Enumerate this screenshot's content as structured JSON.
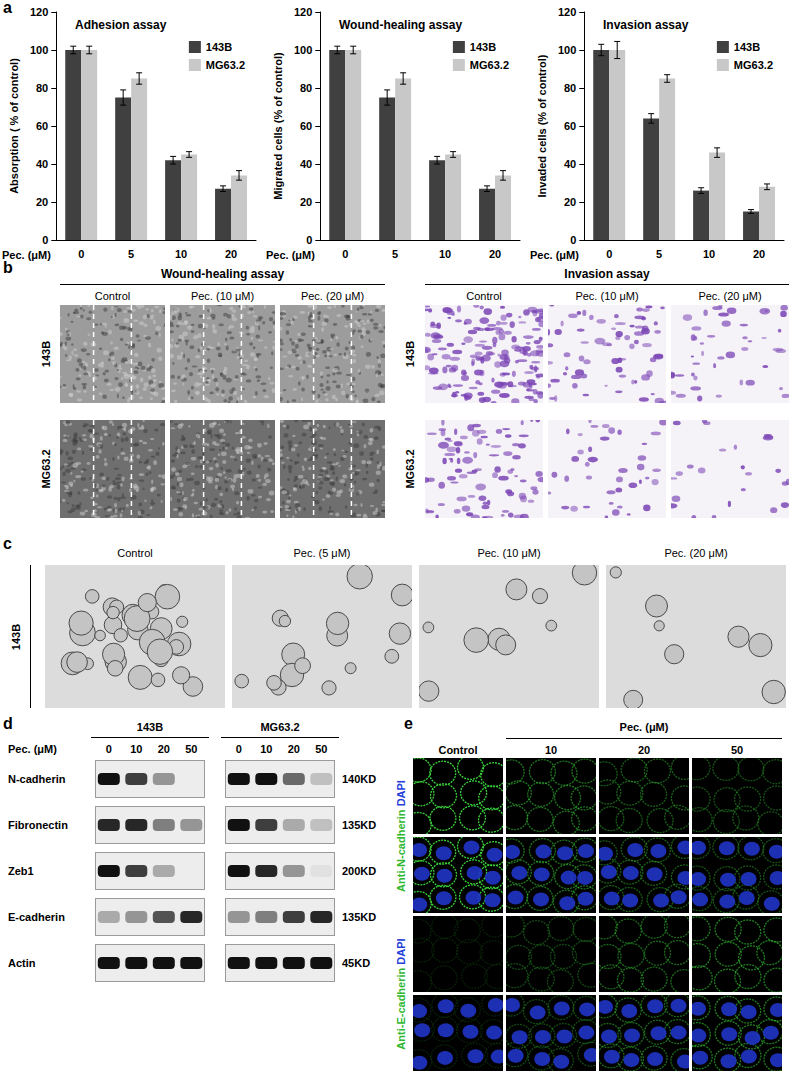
{
  "chart_data": [
    {
      "type": "bar",
      "title": "Adhesion assay",
      "categories": [
        "0",
        "5",
        "10",
        "20"
      ],
      "x_label": "Pec. (μM)",
      "y_label": "Absorption ( % of control)",
      "series": [
        {
          "name": "143B",
          "color": "#404040",
          "values": [
            100,
            75,
            42,
            27
          ],
          "errors": [
            2,
            4,
            2,
            1.5
          ]
        },
        {
          "name": "MG63.2",
          "color": "#c8c8c8",
          "values": [
            100,
            85,
            45,
            34
          ],
          "errors": [
            2,
            3,
            1.5,
            2.5
          ]
        }
      ],
      "ylim": [
        0,
        120
      ],
      "yticks": [
        0,
        20,
        40,
        60,
        80,
        100,
        120
      ],
      "grid": false,
      "legend": "top-right"
    },
    {
      "type": "bar",
      "title": "Wound-healing assay",
      "categories": [
        "0",
        "5",
        "10",
        "20"
      ],
      "x_label": "Pec. (μM)",
      "y_label": "Migrated cells (% of control)",
      "series": [
        {
          "name": "143B",
          "color": "#404040",
          "values": [
            100,
            75,
            42,
            27
          ],
          "errors": [
            2,
            4,
            2,
            1.5
          ]
        },
        {
          "name": "MG63.2",
          "color": "#c8c8c8",
          "values": [
            100,
            85,
            45,
            34
          ],
          "errors": [
            2,
            3,
            1.5,
            2.5
          ]
        }
      ],
      "ylim": [
        0,
        120
      ],
      "yticks": [
        0,
        20,
        40,
        60,
        80,
        100,
        120
      ],
      "grid": false,
      "legend": "top-right"
    },
    {
      "type": "bar",
      "title": "Invasion assay",
      "categories": [
        "0",
        "5",
        "10",
        "20"
      ],
      "x_label": "Pec. (μM)",
      "y_label": "Invaded cells (% of control)",
      "series": [
        {
          "name": "143B",
          "color": "#404040",
          "values": [
            100,
            64,
            26,
            15
          ],
          "errors": [
            3,
            2.5,
            1.5,
            1
          ]
        },
        {
          "name": "MG63.2",
          "color": "#c8c8c8",
          "values": [
            100,
            85,
            46,
            28
          ],
          "errors": [
            4.5,
            2,
            2.5,
            1.5
          ]
        }
      ],
      "ylim": [
        0,
        120
      ],
      "yticks": [
        0,
        20,
        40,
        60,
        80,
        100,
        120
      ],
      "grid": false,
      "legend": "top-right"
    }
  ],
  "panels": {
    "a": {
      "label": "a"
    },
    "b": {
      "label": "b",
      "groups": [
        {
          "title": "Wound-healing assay",
          "columns": [
            "Control",
            "Pec. (10 μM)",
            "Pec. (20 μM)"
          ],
          "rows": [
            "143B",
            "MG63.2"
          ]
        },
        {
          "title": "Invasion assay",
          "columns": [
            "Control",
            "Pec. (10 μM)",
            "Pec. (20 μM)"
          ],
          "rows": [
            "143B",
            "MG63.2"
          ]
        }
      ]
    },
    "c": {
      "label": "c",
      "row": "143B",
      "columns": [
        "Control",
        "Pec. (5 μM)",
        "Pec. (10 μM)",
        "Pec. (20 μM)"
      ]
    },
    "d": {
      "label": "d",
      "treatment": "Pec. (μM)",
      "groups": [
        {
          "name": "143B",
          "doses": [
            "0",
            "10",
            "20",
            "50"
          ]
        },
        {
          "name": "MG63.2",
          "doses": [
            "0",
            "10",
            "20",
            "50"
          ]
        }
      ],
      "rows": [
        {
          "protein": "N-cadherin",
          "size": "140KD",
          "intensity": [
            [
              1,
              0.8,
              0.4,
              0
            ],
            [
              1,
              1,
              0.6,
              0.2
            ]
          ]
        },
        {
          "protein": "Fibronectin",
          "size": "135KD",
          "intensity": [
            [
              0.9,
              0.9,
              0.5,
              0.4
            ],
            [
              1,
              0.8,
              0.3,
              0.2
            ]
          ]
        },
        {
          "protein": "Zeb1",
          "size": "200KD",
          "intensity": [
            [
              1,
              0.8,
              0.3,
              0
            ],
            [
              1,
              0.9,
              0.4,
              0.05
            ]
          ]
        },
        {
          "protein": "E-cadherin",
          "size": "135KD",
          "intensity": [
            [
              0.3,
              0.4,
              0.7,
              0.9
            ],
            [
              0.4,
              0.5,
              0.8,
              0.9
            ]
          ]
        },
        {
          "protein": "Actin",
          "size": "45KD",
          "intensity": [
            [
              1,
              1,
              1,
              1
            ],
            [
              1,
              1,
              1,
              1
            ]
          ]
        }
      ]
    },
    "e": {
      "label": "e",
      "treatment": "Pec. (μM)",
      "columns": [
        "Control",
        "10",
        "20",
        "50"
      ],
      "stains": [
        {
          "antibody": "Anti-N-cadherin",
          "counterstain": "DAPI",
          "signal": [
            1,
            0.55,
            0.45,
            0.4
          ]
        },
        {
          "antibody": "Anti-E-cadherin",
          "counterstain": "DAPI",
          "signal": [
            0.15,
            0.35,
            0.5,
            0.6
          ]
        }
      ]
    }
  }
}
